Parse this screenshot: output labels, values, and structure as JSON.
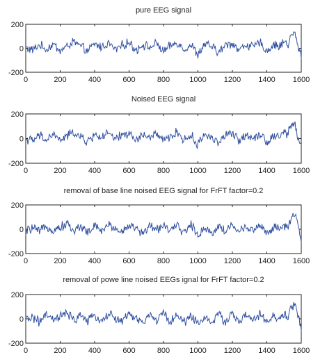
{
  "figure": {
    "line_color": "#2f4f9f",
    "axis_color": "#222222",
    "background": "#ffffff"
  },
  "chart_data": [
    {
      "type": "line",
      "title": "pure EEG signal",
      "xlim": [
        0,
        1600
      ],
      "ylim": [
        -200,
        200
      ],
      "xticks": [
        0,
        200,
        400,
        600,
        800,
        1000,
        1200,
        1400,
        1600
      ],
      "yticks": [
        -200,
        0,
        200
      ],
      "grid": false,
      "series": [
        {
          "x": [
            0,
            40,
            80,
            120,
            160,
            200,
            240,
            280,
            320,
            360,
            400,
            440,
            480,
            520,
            560,
            600,
            640,
            680,
            720,
            760,
            800,
            840,
            880,
            920,
            960,
            1000,
            1040,
            1080,
            1120,
            1160,
            1200,
            1240,
            1280,
            1320,
            1360,
            1400,
            1440,
            1480,
            1500,
            1520,
            1540,
            1560,
            1580,
            1600
          ],
          "y": [
            5,
            -20,
            35,
            -10,
            40,
            -25,
            20,
            70,
            15,
            -30,
            45,
            10,
            55,
            -15,
            30,
            60,
            -20,
            40,
            5,
            50,
            -35,
            25,
            60,
            -10,
            35,
            -70,
            45,
            15,
            -45,
            30,
            55,
            -20,
            40,
            10,
            60,
            -30,
            35,
            20,
            85,
            30,
            120,
            170,
            20,
            -70
          ]
        }
      ]
    },
    {
      "type": "line",
      "title": "Noised EEG signal",
      "xlim": [
        0,
        1600
      ],
      "ylim": [
        -200,
        200
      ],
      "xticks": [
        0,
        200,
        400,
        600,
        800,
        1000,
        1200,
        1400,
        1600
      ],
      "yticks": [
        -200,
        0,
        200
      ],
      "grid": false,
      "series": [
        {
          "x": [
            0,
            40,
            80,
            120,
            160,
            200,
            240,
            280,
            320,
            360,
            400,
            440,
            480,
            520,
            560,
            600,
            640,
            680,
            720,
            760,
            800,
            840,
            880,
            920,
            960,
            1000,
            1040,
            1080,
            1120,
            1160,
            1200,
            1240,
            1280,
            1320,
            1360,
            1400,
            1440,
            1480,
            1500,
            1520,
            1540,
            1560,
            1580,
            1600
          ],
          "y": [
            0,
            -25,
            30,
            -15,
            45,
            -20,
            25,
            65,
            10,
            -35,
            40,
            15,
            50,
            -10,
            35,
            55,
            -25,
            45,
            0,
            55,
            -30,
            20,
            65,
            -15,
            30,
            -65,
            50,
            10,
            -40,
            35,
            50,
            -25,
            45,
            5,
            55,
            -35,
            30,
            25,
            80,
            35,
            125,
            165,
            15,
            -80
          ]
        }
      ]
    },
    {
      "type": "line",
      "title": "removal  of base line noised EEG signal for FrFT factor=0.2",
      "xlim": [
        0,
        1600
      ],
      "ylim": [
        -200,
        200
      ],
      "xticks": [
        0,
        200,
        400,
        600,
        800,
        1000,
        1200,
        1400,
        1600
      ],
      "yticks": [
        -200,
        0,
        200
      ],
      "grid": false,
      "series": [
        {
          "x": [
            0,
            40,
            80,
            120,
            160,
            200,
            240,
            280,
            320,
            360,
            400,
            440,
            480,
            520,
            560,
            600,
            640,
            680,
            720,
            760,
            800,
            840,
            880,
            920,
            960,
            1000,
            1040,
            1080,
            1120,
            1160,
            1200,
            1240,
            1280,
            1320,
            1360,
            1400,
            1440,
            1480,
            1500,
            1520,
            1540,
            1560,
            1580,
            1600
          ],
          "y": [
            -20,
            15,
            -30,
            35,
            -10,
            20,
            60,
            -25,
            40,
            -35,
            30,
            -15,
            45,
            10,
            -30,
            50,
            0,
            -40,
            35,
            -10,
            55,
            -20,
            30,
            -30,
            45,
            -60,
            20,
            -45,
            40,
            -25,
            50,
            -35,
            30,
            -10,
            45,
            -40,
            20,
            -5,
            40,
            10,
            90,
            150,
            60,
            -120
          ]
        }
      ]
    },
    {
      "type": "line",
      "title": "removal  of powe line noised EEGs ignal for FrFT factor=0.2",
      "xlim": [
        0,
        1600
      ],
      "ylim": [
        -200,
        200
      ],
      "xticks": [
        0,
        200,
        400,
        600,
        800,
        1000,
        1200,
        1400,
        1600
      ],
      "yticks": [
        -200,
        0,
        200
      ],
      "grid": false,
      "series": [
        {
          "x": [
            0,
            40,
            80,
            120,
            160,
            200,
            240,
            280,
            320,
            360,
            400,
            440,
            480,
            520,
            560,
            600,
            640,
            680,
            720,
            760,
            800,
            840,
            880,
            920,
            960,
            1000,
            1040,
            1080,
            1120,
            1160,
            1200,
            1240,
            1280,
            1320,
            1360,
            1400,
            1440,
            1480,
            1500,
            1520,
            1540,
            1560,
            1580,
            1600
          ],
          "y": [
            -10,
            20,
            -35,
            40,
            -15,
            25,
            55,
            -20,
            45,
            -30,
            35,
            -20,
            50,
            5,
            -25,
            55,
            -5,
            -35,
            40,
            -15,
            60,
            -25,
            35,
            -35,
            40,
            -55,
            25,
            -40,
            45,
            -30,
            55,
            -30,
            35,
            -15,
            40,
            -35,
            25,
            0,
            45,
            15,
            95,
            160,
            55,
            -110
          ]
        }
      ]
    }
  ]
}
